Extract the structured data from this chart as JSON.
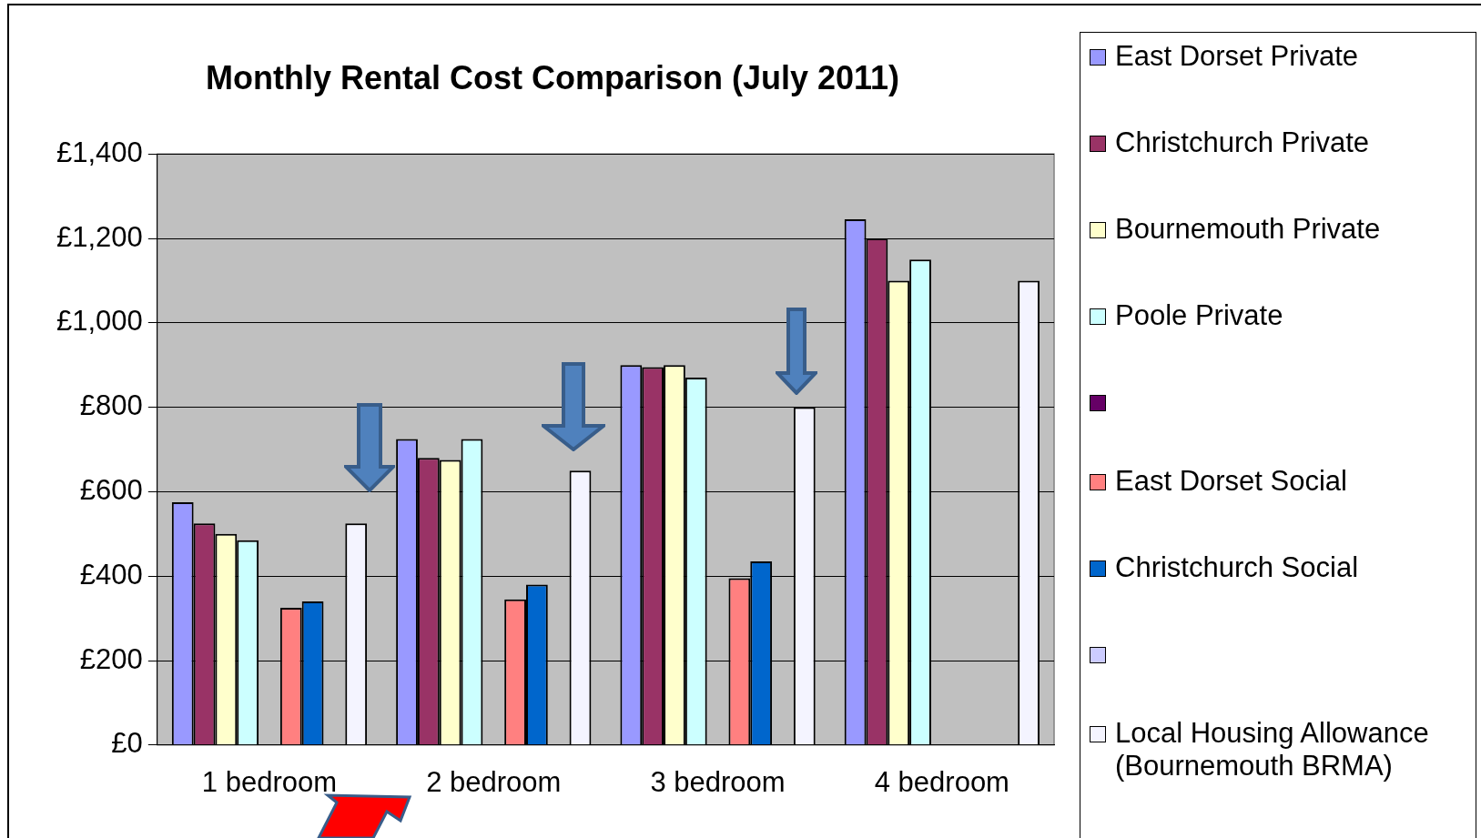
{
  "chart_data": {
    "type": "bar",
    "title": "Monthly Rental Cost Comparison (July 2011)",
    "categories": [
      "1 bedroom",
      "2 bedroom",
      "3 bedroom",
      "4 bedroom"
    ],
    "series": [
      {
        "name": "East Dorset Private",
        "color": "#9999ff",
        "values": [
          575,
          725,
          900,
          1245
        ]
      },
      {
        "name": "Christchurch Private",
        "color": "#993366",
        "values": [
          525,
          680,
          895,
          1200
        ]
      },
      {
        "name": "Bournemouth Private",
        "color": "#ffffcc",
        "values": [
          500,
          675,
          900,
          1100
        ]
      },
      {
        "name": "Poole Private",
        "color": "#ccffff",
        "values": [
          485,
          725,
          870,
          1150
        ]
      },
      {
        "color": "#660066",
        "values": [
          null,
          null,
          null,
          null
        ]
      },
      {
        "name": "East Dorset Social",
        "color": "#ff8080",
        "values": [
          325,
          345,
          395,
          null
        ]
      },
      {
        "name": "Christchurch Social",
        "color": "#0066cc",
        "values": [
          340,
          380,
          435,
          null
        ]
      },
      {
        "color": "#ccccff",
        "values": [
          null,
          null,
          null,
          null
        ]
      },
      {
        "name": "Local Housing Allowance (Bournemouth BRMA)",
        "color": "#f4f4ff",
        "values": [
          525,
          650,
          800,
          1100
        ]
      }
    ],
    "ylim": [
      0,
      1400
    ],
    "yticks": [
      {
        "value": 0,
        "label": "£0"
      },
      {
        "value": 200,
        "label": "£200"
      },
      {
        "value": 400,
        "label": "£400"
      },
      {
        "value": 600,
        "label": "£600"
      },
      {
        "value": 800,
        "label": "£800"
      },
      {
        "value": 1000,
        "label": "£1,000"
      },
      {
        "value": 1200,
        "label": "£1,200"
      },
      {
        "value": 1400,
        "label": "£1,400"
      }
    ],
    "grid": "y",
    "legend": "right"
  }
}
